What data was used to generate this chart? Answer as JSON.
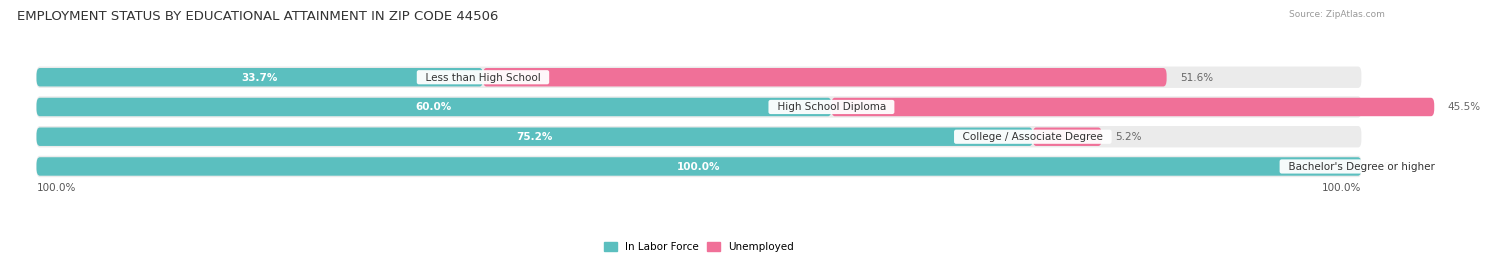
{
  "title": "EMPLOYMENT STATUS BY EDUCATIONAL ATTAINMENT IN ZIP CODE 44506",
  "source": "Source: ZipAtlas.com",
  "categories": [
    "Less than High School",
    "High School Diploma",
    "College / Associate Degree",
    "Bachelor's Degree or higher"
  ],
  "in_labor_force": [
    33.7,
    60.0,
    75.2,
    100.0
  ],
  "unemployed": [
    51.6,
    45.5,
    5.2,
    0.0
  ],
  "teal_color": "#5BBFBF",
  "pink_color": "#F07098",
  "bg_color": "#FFFFFF",
  "bar_bg_color": "#EBEBEB",
  "row_sep_color": "#FFFFFF",
  "title_fontsize": 9.5,
  "label_fontsize": 7.5,
  "value_fontsize": 7.5,
  "legend_fontsize": 7.5,
  "axis_label_left": "100.0%",
  "axis_label_right": "100.0%",
  "total_width": 100.0
}
